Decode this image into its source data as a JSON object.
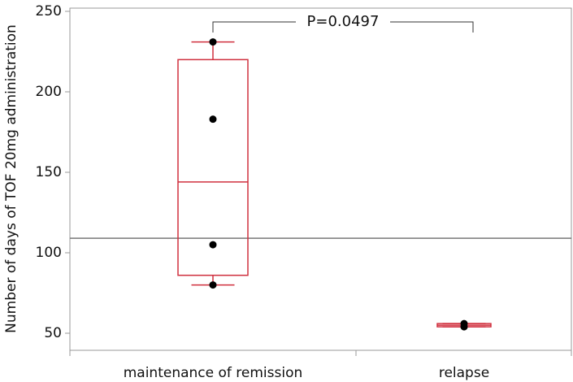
{
  "chart_data": {
    "type": "box",
    "y_label": "Number of days of TOF 20mg administration",
    "categories": [
      "maintenance of remission",
      "relapse"
    ],
    "boxes": [
      {
        "min": 80,
        "q1": 86,
        "median": 144,
        "q3": 220,
        "max": 231,
        "points": [
          231,
          183,
          105,
          80
        ]
      },
      {
        "min": 54,
        "q1": 54,
        "median": 55,
        "q3": 56,
        "max": 56,
        "points": [
          56,
          54
        ]
      }
    ],
    "color": "#d0303f",
    "point_color": "#000000",
    "reference_line": 109,
    "annotation": "P=0.0497",
    "ylim": [
      39.4,
      252
    ],
    "yticks": [
      50,
      100,
      150,
      200,
      250
    ]
  }
}
